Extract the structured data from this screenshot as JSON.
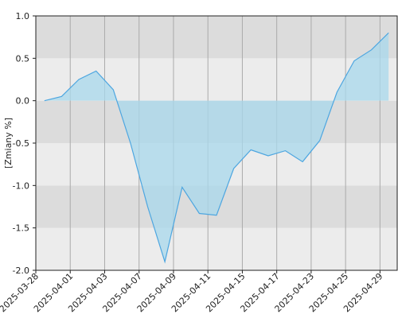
{
  "chart_data": {
    "type": "area",
    "y_label": "[Zmiany %]",
    "categories": [
      "2025-03-28",
      null,
      "2025-04-01",
      null,
      "2025-04-03",
      null,
      "2025-04-07",
      null,
      "2025-04-09",
      null,
      "2025-04-11",
      null,
      "2025-04-15",
      null,
      "2025-04-17",
      null,
      "2025-04-23",
      null,
      "2025-04-25",
      null,
      "2025-04-29"
    ],
    "values": [
      0,
      0.05,
      0.25,
      0.35,
      0.13,
      -0.5,
      -1.25,
      -1.9,
      -1.02,
      -1.33,
      -1.35,
      -0.8,
      -0.58,
      -0.65,
      -0.59,
      -0.72,
      -0.47,
      0.1,
      0.47,
      0.6,
      0.8
    ],
    "color": "#4da6e0",
    "fill": "#a8d8ec",
    "ylim": [
      -2,
      1
    ],
    "yticks": [
      {
        "value": -2,
        "label": "-2.0"
      },
      -1.5,
      {
        "value": -1,
        "label": "-1.0"
      },
      -0.5,
      {
        "value": 0,
        "label": "0.0"
      },
      0.5,
      {
        "value": 1,
        "label": "1.0"
      }
    ],
    "grid": true
  }
}
